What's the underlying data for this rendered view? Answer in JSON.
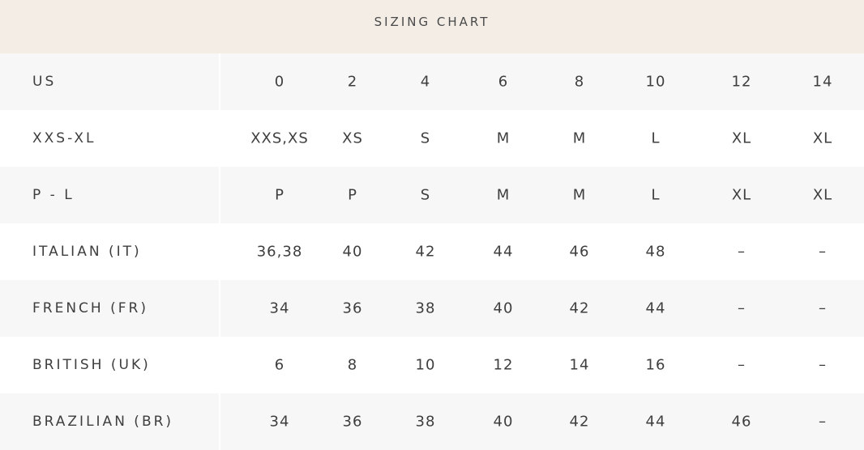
{
  "header": {
    "title": "SIZING CHART"
  },
  "rows": [
    {
      "label": "US",
      "values": [
        "0",
        "2",
        "4",
        "6",
        "8",
        "10",
        "12",
        "14"
      ]
    },
    {
      "label": "XXS-XL",
      "values": [
        "XXS,XS",
        "XS",
        "S",
        "M",
        "M",
        "L",
        "XL",
        "XL"
      ]
    },
    {
      "label": "P - L",
      "values": [
        "P",
        "P",
        "S",
        "M",
        "M",
        "L",
        "XL",
        "XL"
      ]
    },
    {
      "label": "ITALIAN (IT)",
      "values": [
        "36,38",
        "40",
        "42",
        "44",
        "46",
        "48",
        "–",
        "–"
      ]
    },
    {
      "label": "FRENCH (FR)",
      "values": [
        "34",
        "36",
        "38",
        "40",
        "42",
        "44",
        "–",
        "–"
      ]
    },
    {
      "label": "BRITISH (UK)",
      "values": [
        "6",
        "8",
        "10",
        "12",
        "14",
        "16",
        "–",
        "–"
      ]
    },
    {
      "label": "BRAZILIAN (BR)",
      "values": [
        "34",
        "36",
        "38",
        "40",
        "42",
        "44",
        "46",
        "–"
      ]
    }
  ]
}
